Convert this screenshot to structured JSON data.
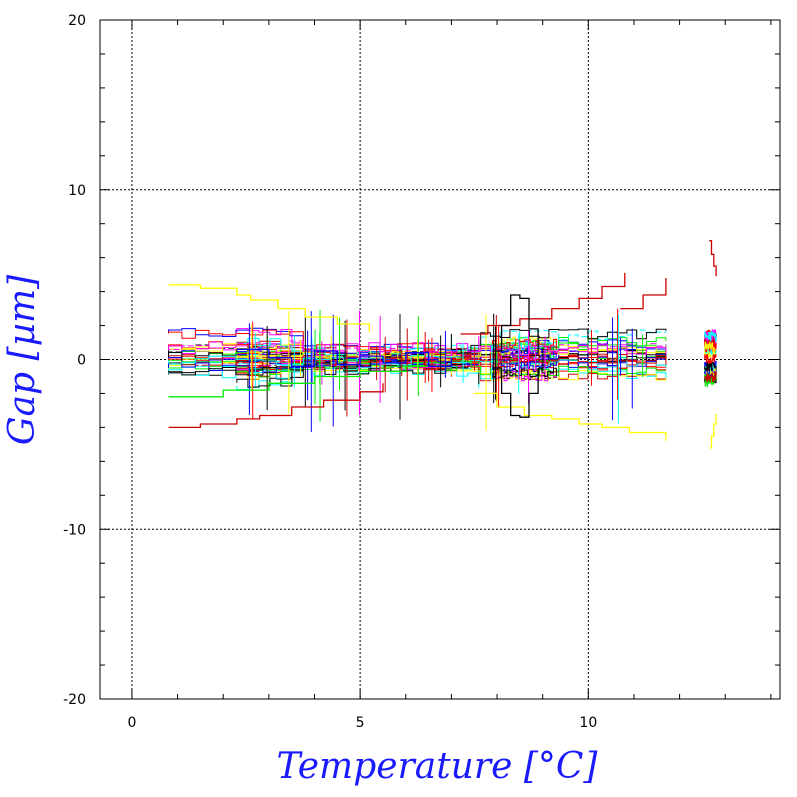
{
  "chart_data": {
    "type": "line",
    "title": "",
    "xlabel": "Temperature [°C]",
    "ylabel": "Gap [µm]",
    "xlim": [
      -0.7,
      14.2
    ],
    "ylim": [
      -20,
      20
    ],
    "x_ticks": [
      0,
      5,
      10
    ],
    "y_ticks": [
      20,
      10,
      0,
      -10,
      -20
    ],
    "x_tick_labels": [
      "0",
      "5",
      "10"
    ],
    "y_tick_labels": [
      "20",
      "10",
      "0",
      "-10",
      "-20"
    ],
    "grid": true,
    "legend": "none",
    "series_colors": [
      "#000000",
      "#ff0000",
      "#00ee00",
      "#0000ff",
      "#ffff00",
      "#00ffff",
      "#ff00ff",
      "#cc0000"
    ],
    "series": [
      {
        "name": "",
        "color": "#ffff00",
        "x": [
          0.8,
          1.5,
          2.3,
          2.6,
          3.2,
          3.8,
          4.5,
          5.2
        ],
        "y": [
          4.4,
          4.2,
          3.8,
          3.5,
          3.0,
          2.5,
          2.1,
          1.6
        ]
      },
      {
        "name": "",
        "color": "#cc0000",
        "x": [
          0.8,
          1.5,
          2.3,
          2.8,
          3.5,
          4.2,
          5.0,
          5.5
        ],
        "y": [
          -4.0,
          -3.8,
          -3.5,
          -3.3,
          -2.8,
          -2.4,
          -1.9,
          -1.4
        ]
      },
      {
        "name": "",
        "color": "#cc0000",
        "x": [
          7.2,
          7.8,
          8.5,
          9.2,
          9.8,
          10.3,
          10.8
        ],
        "y": [
          1.5,
          2.0,
          2.4,
          3.0,
          3.6,
          4.3,
          5.1
        ]
      },
      {
        "name": "",
        "color": "#cc0000",
        "x": [
          10.7,
          11.2,
          11.7
        ],
        "y": [
          3.0,
          3.8,
          4.8
        ]
      },
      {
        "name": "",
        "color": "#ffff00",
        "x": [
          7.5,
          8.0,
          8.6,
          9.2,
          9.8,
          10.3,
          10.9,
          11.7
        ],
        "y": [
          -2.0,
          -2.8,
          -3.3,
          -3.5,
          -3.8,
          -4.0,
          -4.3,
          -4.8
        ]
      },
      {
        "name": "",
        "color": "#00ee00",
        "x": [
          0.8,
          2.0,
          3.0,
          4.0,
          5.0,
          6.0,
          7.0
        ],
        "y": [
          -2.2,
          -1.8,
          -1.4,
          -1.0,
          -0.7,
          -0.4,
          -0.2
        ]
      },
      {
        "name": "",
        "color": "#000000",
        "x": [
          7.9,
          8.1,
          8.3,
          8.5,
          8.7,
          8.9
        ],
        "y": [
          0.5,
          2.0,
          3.8,
          3.6,
          1.8,
          0.4
        ]
      },
      {
        "name": "",
        "color": "#000000",
        "x": [
          7.9,
          8.1,
          8.3,
          8.5,
          8.7,
          8.9
        ],
        "y": [
          -0.5,
          -2.0,
          -3.3,
          -3.4,
          -2.0,
          -0.5
        ]
      },
      {
        "name": "",
        "color": "#0000ff",
        "x": [
          2.3,
          3.0,
          3.5,
          4.0,
          4.5,
          5.0,
          5.5,
          6.0,
          6.5,
          7.0
        ],
        "y": [
          0.6,
          0.1,
          -0.4,
          0.5,
          -0.3,
          0.2,
          -0.2,
          0.4,
          -0.4,
          0.1
        ]
      },
      {
        "name": "",
        "color": "#cc0000",
        "x": [
          12.65,
          12.7,
          12.75,
          12.8
        ],
        "y": [
          7.0,
          6.2,
          5.5,
          4.9
        ]
      },
      {
        "name": "",
        "color": "#ffff00",
        "x": [
          12.65,
          12.7,
          12.75,
          12.8
        ],
        "y": [
          -5.2,
          -4.5,
          -3.8,
          -3.2
        ]
      }
    ]
  }
}
